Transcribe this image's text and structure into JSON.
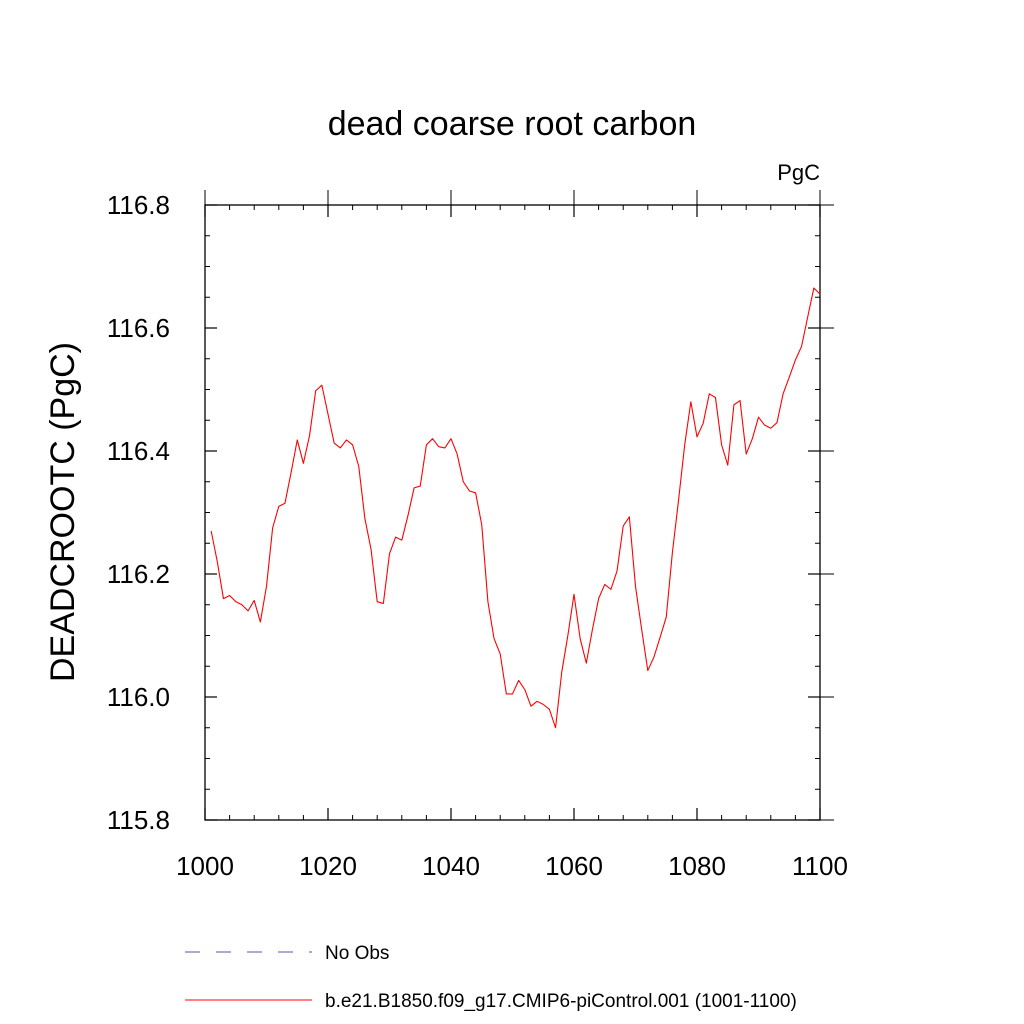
{
  "chart_data": {
    "type": "line",
    "title": "dead coarse root carbon",
    "units_label": "PgC",
    "xlabel": "",
    "ylabel": "DEADCROOTC  (PgC)",
    "xlim": [
      1000,
      1100
    ],
    "ylim": [
      115.8,
      116.8
    ],
    "xticks": [
      1000,
      1020,
      1040,
      1060,
      1080,
      1100
    ],
    "xtick_labels": [
      "1000",
      "1020",
      "1040",
      "1060",
      "1080",
      "1100"
    ],
    "yticks": [
      115.8,
      116.0,
      116.2,
      116.4,
      116.6,
      116.8
    ],
    "ytick_labels": [
      "115.8",
      "116.0",
      "116.2",
      "116.4",
      "116.6",
      "116.8"
    ],
    "grid": false,
    "legend_position": "bottom",
    "series": [
      {
        "name": "b.e21.B1850.f09_g17.CMIP6-piControl.001 (1001-1100)",
        "color": "#ff0000",
        "style": "solid",
        "x": [
          1001,
          1002,
          1003,
          1004,
          1005,
          1006,
          1007,
          1008,
          1009,
          1010,
          1011,
          1012,
          1013,
          1014,
          1015,
          1016,
          1017,
          1018,
          1019,
          1020,
          1021,
          1022,
          1023,
          1024,
          1025,
          1026,
          1027,
          1028,
          1029,
          1030,
          1031,
          1032,
          1033,
          1034,
          1035,
          1036,
          1037,
          1038,
          1039,
          1040,
          1041,
          1042,
          1043,
          1044,
          1045,
          1046,
          1047,
          1048,
          1049,
          1050,
          1051,
          1052,
          1053,
          1054,
          1055,
          1056,
          1057,
          1058,
          1059,
          1060,
          1061,
          1062,
          1063,
          1064,
          1065,
          1066,
          1067,
          1068,
          1069,
          1070,
          1071,
          1072,
          1073,
          1074,
          1075,
          1076,
          1077,
          1078,
          1079,
          1080,
          1081,
          1082,
          1083,
          1084,
          1085,
          1086,
          1087,
          1088,
          1089,
          1090,
          1091,
          1092,
          1093,
          1094,
          1095,
          1096,
          1097,
          1098,
          1099,
          1100
        ],
        "values": [
          116.27,
          116.22,
          116.16,
          116.165,
          116.155,
          116.15,
          116.14,
          116.157,
          116.122,
          116.18,
          116.275,
          116.31,
          116.315,
          116.365,
          116.418,
          116.38,
          116.425,
          116.498,
          116.507,
          116.46,
          116.413,
          116.405,
          116.418,
          116.41,
          116.375,
          116.29,
          116.24,
          116.155,
          116.152,
          116.233,
          116.26,
          116.255,
          116.295,
          116.34,
          116.343,
          116.41,
          116.42,
          116.407,
          116.405,
          116.42,
          116.395,
          116.35,
          116.335,
          116.332,
          116.28,
          116.155,
          116.095,
          116.07,
          116.005,
          116.005,
          116.027,
          116.012,
          115.985,
          115.993,
          115.988,
          115.98,
          115.95,
          116.04,
          116.1,
          116.167,
          116.095,
          116.055,
          116.11,
          116.16,
          116.183,
          116.175,
          116.205,
          116.278,
          116.293,
          116.18,
          116.11,
          116.043,
          116.065,
          116.097,
          116.13,
          116.235,
          116.32,
          116.41,
          116.48,
          116.423,
          116.445,
          116.493,
          116.487,
          116.41,
          116.377,
          116.475,
          116.482,
          116.395,
          116.42,
          116.455,
          116.442,
          116.437,
          116.446,
          116.493,
          116.52,
          116.548,
          116.57,
          116.618,
          116.665,
          116.655
        ]
      },
      {
        "name": "No Obs",
        "color": "#5555aa",
        "style": "dashed",
        "x": [],
        "values": []
      }
    ]
  }
}
